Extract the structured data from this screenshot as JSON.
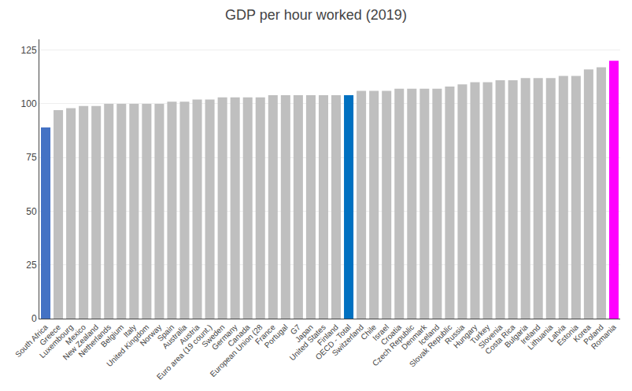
{
  "chart_data": {
    "type": "bar",
    "title": "GDP per hour worked (2019)",
    "categories": [
      "South Africa",
      "Greece",
      "Luxembourg",
      "Mexico",
      "New Zealand",
      "Netherlands",
      "Belgium",
      "Italy",
      "United Kingdom",
      "Norway",
      "Spain",
      "Australia",
      "Austria",
      "Euro area (19 count.)",
      "Sweden",
      "Germany",
      "Canada",
      "European Union (28",
      "France",
      "Portugal",
      "G7",
      "Japan",
      "United States",
      "Finland",
      "OECD - Total",
      "Switzerland",
      "Chile",
      "Israel",
      "Croatia",
      "Czech Republic",
      "Denmark",
      "Iceland",
      "Slovak Republic",
      "Russia",
      "Hungary",
      "Turkey",
      "Slovenia",
      "Costa Rica",
      "Bulgaria",
      "Ireland",
      "Lithuania",
      "Latvia",
      "Estonia",
      "Korea",
      "Poland",
      "Romania"
    ],
    "values": [
      89,
      97,
      98,
      99,
      99,
      100,
      100,
      100,
      100,
      100,
      101,
      101,
      102,
      102,
      103,
      103,
      103,
      103,
      104,
      104,
      104,
      104,
      104,
      104,
      104,
      106,
      106,
      106,
      107,
      107,
      107,
      107,
      108,
      109,
      110,
      110,
      111,
      111,
      112,
      112,
      112,
      113,
      113,
      116,
      117,
      120
    ],
    "colors": [
      "#4472c4",
      "#bfbfbf",
      "#bfbfbf",
      "#bfbfbf",
      "#bfbfbf",
      "#bfbfbf",
      "#bfbfbf",
      "#bfbfbf",
      "#bfbfbf",
      "#bfbfbf",
      "#bfbfbf",
      "#bfbfbf",
      "#bfbfbf",
      "#bfbfbf",
      "#bfbfbf",
      "#bfbfbf",
      "#bfbfbf",
      "#bfbfbf",
      "#bfbfbf",
      "#bfbfbf",
      "#bfbfbf",
      "#bfbfbf",
      "#bfbfbf",
      "#bfbfbf",
      "#0070c0",
      "#bfbfbf",
      "#bfbfbf",
      "#bfbfbf",
      "#bfbfbf",
      "#bfbfbf",
      "#bfbfbf",
      "#bfbfbf",
      "#bfbfbf",
      "#bfbfbf",
      "#bfbfbf",
      "#bfbfbf",
      "#bfbfbf",
      "#bfbfbf",
      "#bfbfbf",
      "#bfbfbf",
      "#bfbfbf",
      "#bfbfbf",
      "#bfbfbf",
      "#bfbfbf",
      "#bfbfbf",
      "#ff00ff"
    ],
    "ylim": [
      0,
      130
    ],
    "yticks": [
      0,
      25,
      50,
      75,
      100,
      125
    ],
    "grid": true
  }
}
